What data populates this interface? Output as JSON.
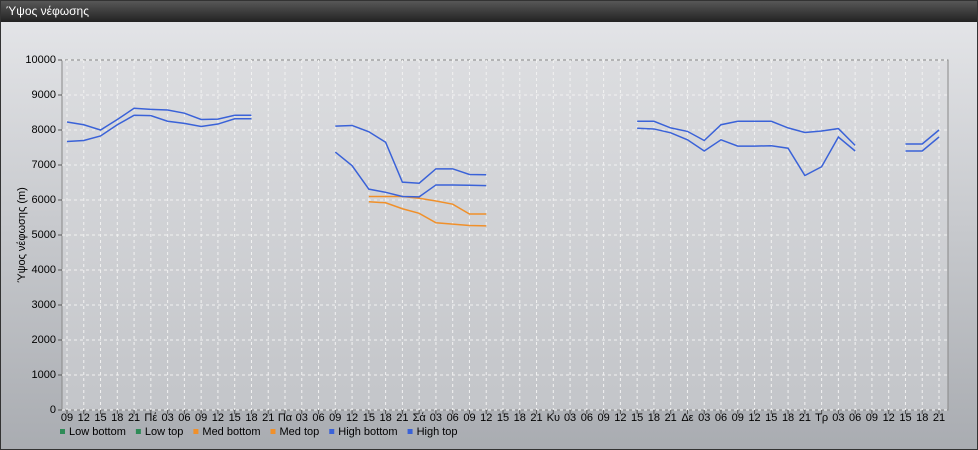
{
  "window": {
    "title": "Ύψος νέφωσης"
  },
  "chart_data": {
    "type": "line",
    "ylabel": "Ύψος νέφωσης (m)",
    "categories": [
      "09",
      "12",
      "15",
      "18",
      "21",
      "Πέ",
      "03",
      "06",
      "09",
      "12",
      "15",
      "18",
      "21",
      "Πα",
      "03",
      "06",
      "09",
      "12",
      "15",
      "18",
      "21",
      "Σά",
      "03",
      "06",
      "09",
      "12",
      "15",
      "18",
      "21",
      "Κυ",
      "03",
      "06",
      "09",
      "12",
      "15",
      "18",
      "21",
      "Δε",
      "03",
      "06",
      "09",
      "12",
      "15",
      "18",
      "21",
      "Τρ",
      "03",
      "06",
      "09",
      "12",
      "15",
      "18",
      "21"
    ],
    "ylim": [
      0,
      10000
    ],
    "yticks": [
      0,
      1000,
      2000,
      3000,
      4000,
      5000,
      6000,
      7000,
      8000,
      9000,
      10000
    ],
    "grid": true,
    "legend": "bottom",
    "series": [
      {
        "name": "Low bottom",
        "color": "#2e8b57",
        "values": [
          null,
          null,
          null,
          null,
          null,
          null,
          null,
          null,
          null,
          null,
          null,
          null,
          null,
          null,
          null,
          null,
          null,
          null,
          null,
          null,
          null,
          null,
          null,
          null,
          null,
          null,
          null,
          null,
          null,
          null,
          null,
          null,
          null,
          null,
          null,
          null,
          null,
          null,
          null,
          null,
          null,
          null,
          null,
          null,
          null,
          null,
          null,
          null,
          null,
          null,
          null,
          null,
          null
        ]
      },
      {
        "name": "Low top",
        "color": "#2e8b57",
        "values": [
          null,
          null,
          null,
          null,
          null,
          null,
          null,
          null,
          null,
          null,
          null,
          null,
          null,
          null,
          null,
          null,
          null,
          null,
          null,
          null,
          null,
          null,
          null,
          null,
          null,
          null,
          null,
          null,
          null,
          null,
          null,
          null,
          null,
          null,
          null,
          null,
          null,
          null,
          null,
          null,
          null,
          null,
          null,
          null,
          null,
          null,
          null,
          null,
          null,
          null,
          null,
          null,
          null
        ]
      },
      {
        "name": "Med bottom",
        "color": "#f0902a",
        "values": [
          null,
          null,
          null,
          null,
          null,
          null,
          null,
          null,
          null,
          null,
          null,
          null,
          null,
          null,
          null,
          null,
          null,
          null,
          5950,
          5920,
          5750,
          5620,
          5350,
          5310,
          5270,
          5260,
          null,
          null,
          null,
          null,
          null,
          null,
          null,
          null,
          null,
          null,
          null,
          null,
          null,
          null,
          null,
          null,
          null,
          null,
          null,
          null,
          null,
          null,
          null,
          null,
          null,
          null,
          null
        ]
      },
      {
        "name": "Med top",
        "color": "#f0902a",
        "values": [
          null,
          null,
          null,
          null,
          null,
          null,
          null,
          null,
          null,
          null,
          null,
          null,
          null,
          null,
          null,
          null,
          null,
          null,
          6100,
          6100,
          6100,
          6050,
          5970,
          5880,
          5600,
          5600,
          null,
          null,
          null,
          null,
          null,
          null,
          null,
          null,
          null,
          null,
          null,
          null,
          null,
          null,
          null,
          null,
          null,
          null,
          null,
          null,
          null,
          null,
          null,
          null,
          null,
          null,
          null
        ]
      },
      {
        "name": "High bottom",
        "color": "#3a62d8",
        "values": [
          7670,
          7700,
          7830,
          8150,
          8420,
          8410,
          8250,
          8190,
          8100,
          8170,
          8320,
          8320,
          null,
          null,
          null,
          null,
          7370,
          6980,
          6310,
          6220,
          6100,
          6090,
          6430,
          6430,
          6420,
          6410,
          null,
          null,
          null,
          null,
          null,
          null,
          null,
          null,
          8050,
          8030,
          7920,
          7720,
          7400,
          7720,
          7540,
          7540,
          7550,
          7480,
          6700,
          6950,
          7800,
          7400,
          null,
          null,
          7400,
          7400,
          7800
        ]
      },
      {
        "name": "High top",
        "color": "#3a62d8",
        "values": [
          8230,
          8150,
          8000,
          8300,
          8620,
          8590,
          8570,
          8480,
          8300,
          8310,
          8420,
          8420,
          null,
          null,
          null,
          null,
          8110,
          8130,
          7950,
          7650,
          6510,
          6480,
          6890,
          6890,
          6730,
          6720,
          null,
          null,
          null,
          null,
          null,
          null,
          null,
          null,
          8250,
          8250,
          8060,
          7960,
          7700,
          8150,
          8250,
          8250,
          8250,
          8060,
          7930,
          7970,
          8040,
          7560,
          null,
          null,
          7600,
          7600,
          8000
        ]
      }
    ]
  }
}
